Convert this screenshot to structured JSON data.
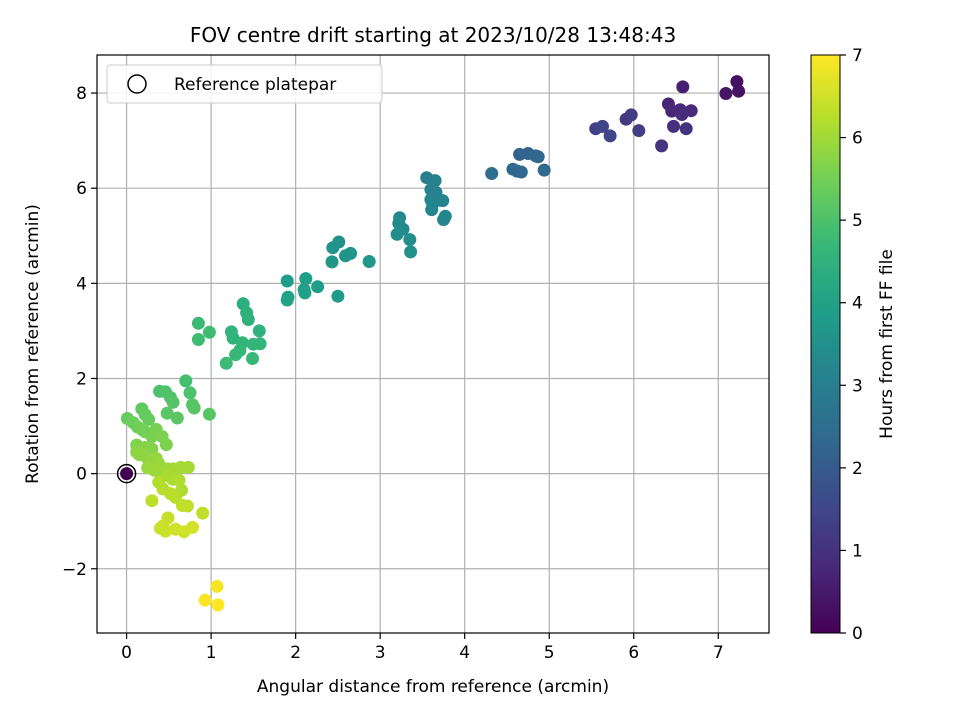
{
  "chart_data": {
    "type": "scatter",
    "title": "FOV centre drift starting at 2023/10/28 13:48:43",
    "xlabel": "Angular distance from reference (arcmin)",
    "ylabel": "Rotation from reference (arcmin)",
    "xlim": [
      -0.35,
      7.6
    ],
    "ylim": [
      -3.35,
      8.8
    ],
    "xticks": [
      0,
      1,
      2,
      3,
      4,
      5,
      6,
      7
    ],
    "xtick_labels": [
      "0",
      "1",
      "2",
      "3",
      "4",
      "5",
      "6",
      "7"
    ],
    "yticks": [
      -2,
      0,
      2,
      4,
      6,
      8
    ],
    "ytick_labels": [
      "−2",
      "0",
      "2",
      "4",
      "6",
      "8"
    ],
    "grid": true,
    "legend": {
      "placement": "top-left",
      "entries": [
        "Reference platepar"
      ]
    },
    "reference_point": {
      "x": 0,
      "y": 0,
      "c": 0
    },
    "colorbar": {
      "label": "Hours from first FF file",
      "range": [
        0,
        7
      ],
      "ticks": [
        0,
        1,
        2,
        3,
        4,
        5,
        6,
        7
      ],
      "tick_labels": [
        "0",
        "1",
        "2",
        "3",
        "4",
        "5",
        "6",
        "7"
      ],
      "colormap": [
        "#440154",
        "#482878",
        "#3e4989",
        "#31688e",
        "#26828e",
        "#1f9e89",
        "#35b779",
        "#6ece58",
        "#b5de2b",
        "#fde725"
      ]
    },
    "points": [
      [
        7.22,
        8.24,
        0.3
      ],
      [
        7.24,
        8.04,
        0.35
      ],
      [
        7.09,
        7.99,
        0.4
      ],
      [
        6.58,
        8.13,
        0.6
      ],
      [
        6.41,
        7.77,
        0.7
      ],
      [
        6.45,
        7.62,
        0.75
      ],
      [
        6.55,
        7.65,
        0.8
      ],
      [
        6.68,
        7.63,
        0.85
      ],
      [
        6.57,
        7.55,
        0.9
      ],
      [
        6.47,
        7.3,
        0.95
      ],
      [
        6.62,
        7.25,
        1.0
      ],
      [
        6.33,
        6.89,
        1.05
      ],
      [
        5.91,
        7.45,
        1.2
      ],
      [
        5.97,
        7.54,
        1.25
      ],
      [
        6.06,
        7.21,
        1.3
      ],
      [
        5.55,
        7.25,
        1.4
      ],
      [
        5.63,
        7.3,
        1.45
      ],
      [
        5.72,
        7.1,
        1.5
      ],
      [
        4.65,
        6.71,
        2.2
      ],
      [
        4.75,
        6.73,
        2.25
      ],
      [
        4.84,
        6.68,
        2.3
      ],
      [
        4.87,
        6.66,
        2.3
      ],
      [
        4.57,
        6.4,
        2.35
      ],
      [
        4.62,
        6.36,
        2.35
      ],
      [
        4.67,
        6.34,
        2.4
      ],
      [
        4.94,
        6.38,
        2.4
      ],
      [
        4.32,
        6.31,
        2.5
      ],
      [
        3.55,
        6.22,
        3.0
      ],
      [
        3.65,
        6.16,
        3.05
      ],
      [
        3.6,
        5.97,
        3.1
      ],
      [
        3.66,
        5.91,
        3.1
      ],
      [
        3.6,
        5.76,
        3.15
      ],
      [
        3.7,
        5.75,
        3.15
      ],
      [
        3.74,
        5.74,
        3.15
      ],
      [
        3.62,
        5.67,
        3.2
      ],
      [
        3.61,
        5.55,
        3.2
      ],
      [
        3.77,
        5.41,
        3.25
      ],
      [
        3.75,
        5.34,
        3.25
      ],
      [
        3.23,
        5.38,
        3.3
      ],
      [
        3.22,
        5.26,
        3.35
      ],
      [
        3.27,
        5.14,
        3.35
      ],
      [
        3.2,
        5.03,
        3.4
      ],
      [
        3.35,
        4.92,
        3.45
      ],
      [
        3.36,
        4.66,
        3.5
      ],
      [
        2.51,
        4.87,
        3.55
      ],
      [
        2.44,
        4.75,
        3.6
      ],
      [
        2.65,
        4.63,
        3.65
      ],
      [
        2.59,
        4.58,
        3.65
      ],
      [
        2.87,
        4.46,
        3.7
      ],
      [
        2.43,
        4.45,
        3.7
      ],
      [
        2.5,
        3.73,
        3.8
      ],
      [
        1.9,
        4.05,
        3.85
      ],
      [
        2.12,
        4.1,
        3.9
      ],
      [
        2.26,
        3.93,
        3.9
      ],
      [
        2.1,
        3.87,
        3.95
      ],
      [
        2.11,
        3.8,
        3.95
      ],
      [
        1.91,
        3.71,
        4.0
      ],
      [
        1.9,
        3.65,
        4.0
      ],
      [
        1.38,
        3.57,
        4.4
      ],
      [
        1.42,
        3.38,
        4.45
      ],
      [
        1.44,
        3.24,
        4.45
      ],
      [
        1.57,
        3.0,
        4.5
      ],
      [
        1.24,
        2.98,
        4.55
      ],
      [
        1.26,
        2.85,
        4.55
      ],
      [
        1.37,
        2.75,
        4.6
      ],
      [
        1.5,
        2.72,
        4.6
      ],
      [
        1.58,
        2.73,
        4.6
      ],
      [
        1.34,
        2.59,
        4.65
      ],
      [
        1.29,
        2.5,
        4.7
      ],
      [
        1.49,
        2.42,
        4.7
      ],
      [
        1.18,
        2.32,
        4.75
      ],
      [
        0.85,
        3.16,
        4.75
      ],
      [
        0.98,
        2.97,
        4.8
      ],
      [
        0.85,
        2.82,
        4.8
      ],
      [
        0.7,
        1.95,
        4.9
      ],
      [
        0.75,
        1.7,
        5.0
      ],
      [
        0.39,
        1.73,
        5.0
      ],
      [
        0.46,
        1.72,
        5.05
      ],
      [
        0.52,
        1.6,
        5.05
      ],
      [
        0.55,
        1.5,
        5.1
      ],
      [
        0.78,
        1.45,
        5.1
      ],
      [
        0.8,
        1.38,
        5.15
      ],
      [
        0.98,
        1.25,
        5.15
      ],
      [
        0.48,
        1.27,
        5.2
      ],
      [
        0.6,
        1.17,
        5.2
      ],
      [
        0.18,
        1.36,
        5.25
      ],
      [
        0.22,
        1.24,
        5.3
      ],
      [
        0.26,
        1.14,
        5.35
      ],
      [
        0.01,
        1.16,
        5.35
      ],
      [
        0.08,
        1.07,
        5.4
      ],
      [
        0.13,
        0.98,
        5.45
      ],
      [
        0.19,
        0.92,
        5.45
      ],
      [
        0.22,
        0.88,
        5.5
      ],
      [
        0.3,
        0.78,
        5.55
      ],
      [
        0.35,
        0.93,
        5.55
      ],
      [
        0.42,
        0.78,
        5.6
      ],
      [
        0.47,
        0.61,
        5.6
      ],
      [
        0.12,
        0.6,
        5.65
      ],
      [
        0.22,
        0.55,
        5.7
      ],
      [
        0.3,
        0.52,
        5.7
      ],
      [
        0.12,
        0.45,
        5.75
      ],
      [
        0.15,
        0.4,
        5.8
      ],
      [
        0.24,
        0.34,
        5.8
      ],
      [
        0.29,
        0.28,
        5.85
      ],
      [
        0.35,
        0.32,
        5.85
      ],
      [
        0.38,
        0.22,
        5.9
      ],
      [
        0.25,
        0.12,
        5.9
      ],
      [
        0.33,
        0.07,
        5.95
      ],
      [
        0.42,
        0.05,
        5.95
      ],
      [
        0.48,
        0.1,
        6.0
      ],
      [
        0.55,
        0.1,
        6.0
      ],
      [
        0.64,
        0.13,
        6.05
      ],
      [
        0.73,
        0.13,
        6.05
      ],
      [
        0.49,
        -0.05,
        6.1
      ],
      [
        0.55,
        -0.12,
        6.1
      ],
      [
        0.62,
        -0.14,
        6.15
      ],
      [
        0.65,
        -0.35,
        6.15
      ],
      [
        0.38,
        -0.18,
        6.2
      ],
      [
        0.43,
        -0.32,
        6.2
      ],
      [
        0.52,
        -0.42,
        6.25
      ],
      [
        0.58,
        -0.5,
        6.25
      ],
      [
        0.3,
        -0.57,
        6.3
      ],
      [
        0.66,
        -0.67,
        6.3
      ],
      [
        0.72,
        -0.68,
        6.35
      ],
      [
        0.9,
        -0.83,
        6.35
      ],
      [
        0.49,
        -0.93,
        6.4
      ],
      [
        0.43,
        -1.1,
        6.4
      ],
      [
        0.4,
        -1.15,
        6.45
      ],
      [
        0.46,
        -1.21,
        6.45
      ],
      [
        0.58,
        -1.17,
        6.5
      ],
      [
        0.68,
        -1.22,
        6.5
      ],
      [
        0.78,
        -1.13,
        6.55
      ],
      [
        1.07,
        -2.37,
        6.9
      ],
      [
        0.93,
        -2.66,
        6.95
      ],
      [
        1.08,
        -2.76,
        7.0
      ]
    ]
  }
}
